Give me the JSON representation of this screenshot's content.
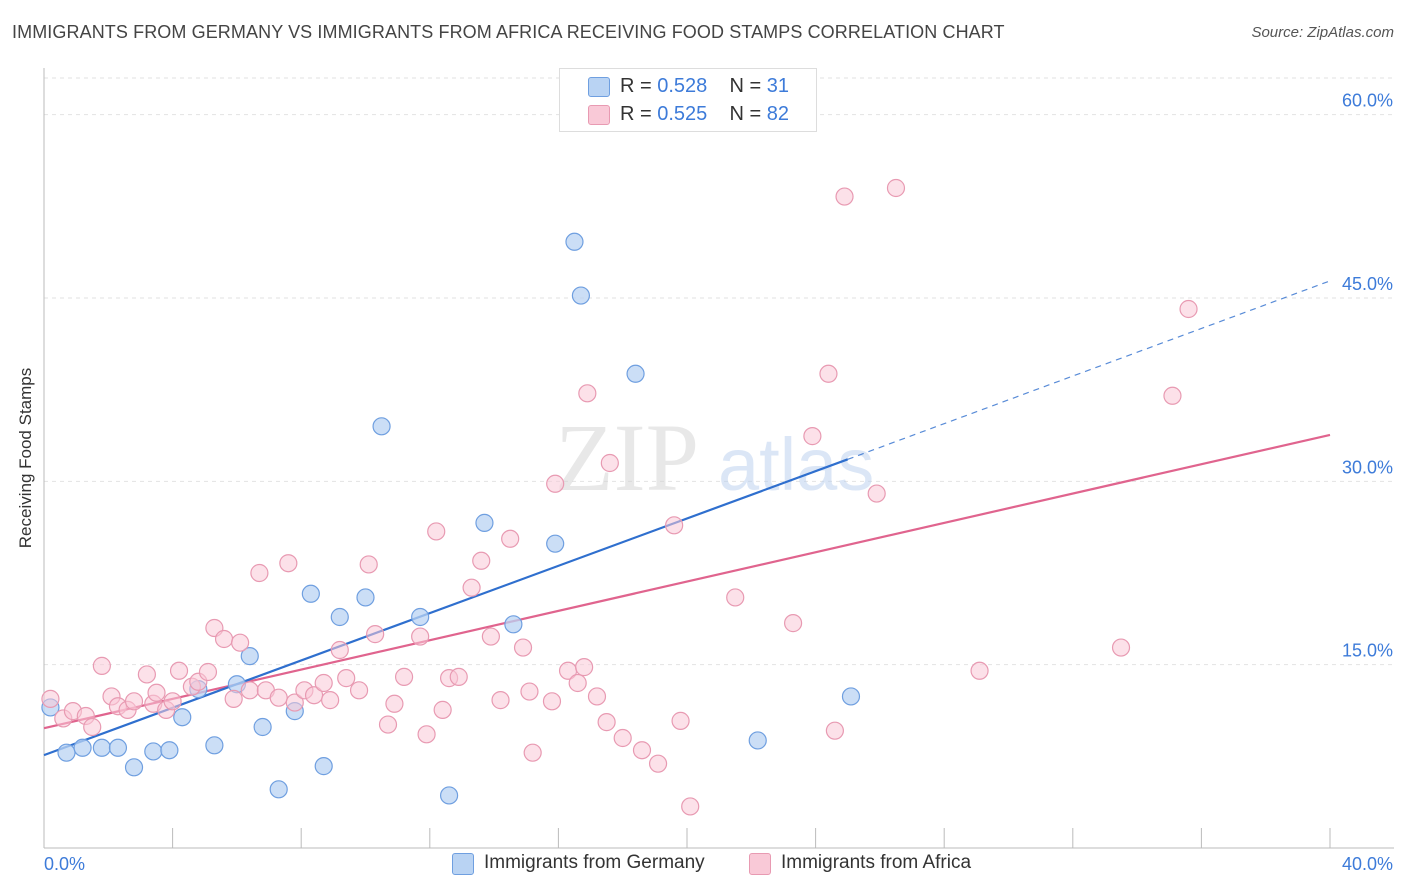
{
  "title": "IMMIGRANTS FROM GERMANY VS IMMIGRANTS FROM AFRICA RECEIVING FOOD STAMPS CORRELATION CHART",
  "source": "Source: ZipAtlas.com",
  "watermark": {
    "zip": "ZIP",
    "atlas": "atlas"
  },
  "colors": {
    "germany_fill": "#b9d3f3",
    "germany_stroke": "#6f9fe0",
    "germany_line": "#2f6fce",
    "africa_fill": "#f9c9d7",
    "africa_stroke": "#e89ab2",
    "africa_line": "#e0648e",
    "axis_text": "#3d7bd9",
    "grid": "#e2e2e2"
  },
  "legend": {
    "rows": [
      {
        "r_label": "R =",
        "r_value": "0.528",
        "n_label": "N =",
        "n_value": "31"
      },
      {
        "r_label": "R =",
        "r_value": "0.525",
        "n_label": "N =",
        "n_value": "82"
      }
    ]
  },
  "bottom_legend": [
    "Immigrants from Germany",
    "Immigrants from Africa"
  ],
  "chart_data": {
    "type": "scatter",
    "title": "IMMIGRANTS FROM GERMANY VS IMMIGRANTS FROM AFRICA RECEIVING FOOD STAMPS CORRELATION CHART",
    "xlabel": "",
    "ylabel": "Receiving Food Stamps",
    "xlim": [
      0,
      40
    ],
    "ylim": [
      0,
      63
    ],
    "x_tick_labels": [
      "0.0%",
      "40.0%"
    ],
    "y_ticks": [
      15,
      30,
      45,
      60
    ],
    "y_tick_labels": [
      "15.0%",
      "30.0%",
      "45.0%",
      "60.0%"
    ],
    "grid": true,
    "series": [
      {
        "name": "Immigrants from Germany",
        "r": 0.528,
        "n": 31,
        "trend": {
          "x0": 0,
          "y0": 7.6,
          "x1": 25,
          "y1": 31.8,
          "dash_x1": 40,
          "dash_y1": 46.4
        },
        "points": [
          [
            0.2,
            11.5
          ],
          [
            0.7,
            7.8
          ],
          [
            1.2,
            8.2
          ],
          [
            1.8,
            8.2
          ],
          [
            2.3,
            8.2
          ],
          [
            2.8,
            6.6
          ],
          [
            3.4,
            7.9
          ],
          [
            3.9,
            8.0
          ],
          [
            4.3,
            10.7
          ],
          [
            4.8,
            13.0
          ],
          [
            5.3,
            8.4
          ],
          [
            6.0,
            13.4
          ],
          [
            6.4,
            15.7
          ],
          [
            6.8,
            9.9
          ],
          [
            7.3,
            4.8
          ],
          [
            7.8,
            11.2
          ],
          [
            8.3,
            20.8
          ],
          [
            8.7,
            6.7
          ],
          [
            9.2,
            18.9
          ],
          [
            10.0,
            20.5
          ],
          [
            10.5,
            34.5
          ],
          [
            11.7,
            18.9
          ],
          [
            12.6,
            4.3
          ],
          [
            13.7,
            26.6
          ],
          [
            14.6,
            18.3
          ],
          [
            15.9,
            24.9
          ],
          [
            16.5,
            49.6
          ],
          [
            16.7,
            45.2
          ],
          [
            18.4,
            38.8
          ],
          [
            22.2,
            8.8
          ],
          [
            25.1,
            12.4
          ]
        ]
      },
      {
        "name": "Immigrants from Africa",
        "r": 0.525,
        "n": 82,
        "trend": {
          "x0": 0,
          "y0": 9.8,
          "x1": 40,
          "y1": 33.8
        },
        "points": [
          [
            0.2,
            12.2
          ],
          [
            0.6,
            10.6
          ],
          [
            0.9,
            11.2
          ],
          [
            1.3,
            10.8
          ],
          [
            1.5,
            9.9
          ],
          [
            1.8,
            14.9
          ],
          [
            2.1,
            12.4
          ],
          [
            2.3,
            11.6
          ],
          [
            2.6,
            11.3
          ],
          [
            2.8,
            12.0
          ],
          [
            3.2,
            14.2
          ],
          [
            3.4,
            11.8
          ],
          [
            3.5,
            12.7
          ],
          [
            3.8,
            11.3
          ],
          [
            4.0,
            12.0
          ],
          [
            4.2,
            14.5
          ],
          [
            4.6,
            13.2
          ],
          [
            4.8,
            13.6
          ],
          [
            5.1,
            14.4
          ],
          [
            5.3,
            18.0
          ],
          [
            5.6,
            17.1
          ],
          [
            5.9,
            12.2
          ],
          [
            6.1,
            16.8
          ],
          [
            6.4,
            12.9
          ],
          [
            6.7,
            22.5
          ],
          [
            6.9,
            12.9
          ],
          [
            7.3,
            12.3
          ],
          [
            7.6,
            23.3
          ],
          [
            7.8,
            11.9
          ],
          [
            8.1,
            12.9
          ],
          [
            8.4,
            12.5
          ],
          [
            8.7,
            13.5
          ],
          [
            8.9,
            12.1
          ],
          [
            9.2,
            16.2
          ],
          [
            9.4,
            13.9
          ],
          [
            9.8,
            12.9
          ],
          [
            10.1,
            23.2
          ],
          [
            10.3,
            17.5
          ],
          [
            10.7,
            10.1
          ],
          [
            10.9,
            11.8
          ],
          [
            11.2,
            14.0
          ],
          [
            11.7,
            17.3
          ],
          [
            11.9,
            9.3
          ],
          [
            12.2,
            25.9
          ],
          [
            12.4,
            11.3
          ],
          [
            12.6,
            13.9
          ],
          [
            12.9,
            14.0
          ],
          [
            13.3,
            21.3
          ],
          [
            13.6,
            23.5
          ],
          [
            13.9,
            17.3
          ],
          [
            14.2,
            12.1
          ],
          [
            14.5,
            25.3
          ],
          [
            14.9,
            16.4
          ],
          [
            15.1,
            12.8
          ],
          [
            15.2,
            7.8
          ],
          [
            15.8,
            12.0
          ],
          [
            15.9,
            29.8
          ],
          [
            16.3,
            14.5
          ],
          [
            16.6,
            13.5
          ],
          [
            16.8,
            14.8
          ],
          [
            16.9,
            37.2
          ],
          [
            17.2,
            12.4
          ],
          [
            17.5,
            10.3
          ],
          [
            17.6,
            31.5
          ],
          [
            18.0,
            9.0
          ],
          [
            18.6,
            8.0
          ],
          [
            19.1,
            6.9
          ],
          [
            19.6,
            26.4
          ],
          [
            19.8,
            10.4
          ],
          [
            20.1,
            3.4
          ],
          [
            21.5,
            20.5
          ],
          [
            23.3,
            18.4
          ],
          [
            23.9,
            33.7
          ],
          [
            24.4,
            38.8
          ],
          [
            24.6,
            9.6
          ],
          [
            24.9,
            53.3
          ],
          [
            25.9,
            29.0
          ],
          [
            26.5,
            54.0
          ],
          [
            29.1,
            14.5
          ],
          [
            33.5,
            16.4
          ],
          [
            35.1,
            37.0
          ],
          [
            35.6,
            44.1
          ]
        ]
      }
    ]
  }
}
